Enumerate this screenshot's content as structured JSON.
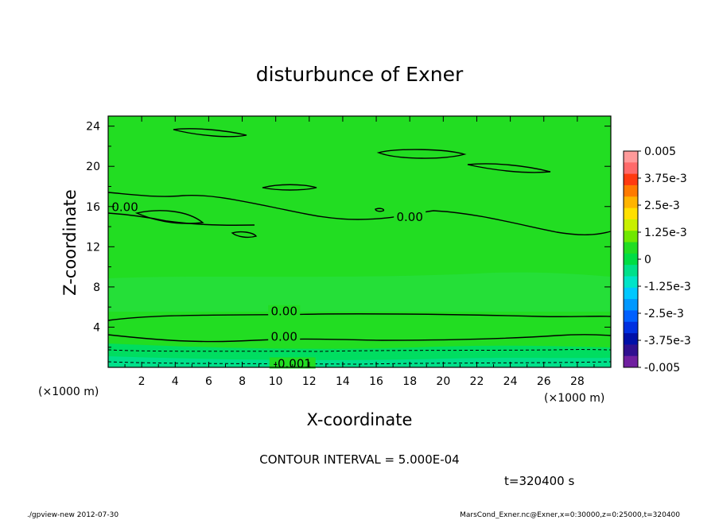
{
  "chart_data": {
    "type": "contour",
    "title": "disturbunce of Exner",
    "xlabel": "X-coordinate",
    "ylabel": "Z-coordinate",
    "x_unit": "(×1000 m)",
    "y_unit": "(×1000 m)",
    "xlim": [
      0,
      30
    ],
    "ylim": [
      0,
      25
    ],
    "x_ticks": [
      2,
      4,
      6,
      8,
      10,
      12,
      14,
      16,
      18,
      20,
      22,
      24,
      26,
      28
    ],
    "y_ticks": [
      4,
      8,
      12,
      16,
      20,
      24
    ],
    "contour_interval_text": "CONTOUR INTERVAL = 5.000E-04",
    "time_text": "t=320400 s",
    "contour_labels": [
      {
        "text": "0.00",
        "x": 1.0,
        "y": 15.8
      },
      {
        "text": "0.00",
        "x": 18.0,
        "y": 14.8
      },
      {
        "text": "0.00",
        "x": 10.5,
        "y": 5.4
      },
      {
        "text": "0.00",
        "x": 10.5,
        "y": 2.9
      },
      {
        "text": "-0.001",
        "x": 11.0,
        "y": 0.2
      }
    ],
    "colorbar": {
      "labels": [
        "0.005",
        "3.75e-3",
        "2.5e-3",
        "1.25e-3",
        "0",
        "-1.25e-3",
        "-2.5e-3",
        "-3.75e-3",
        "-0.005"
      ],
      "colors": [
        "#ff9a9a",
        "#ff6a6a",
        "#ff3a10",
        "#ff7a00",
        "#ffb400",
        "#ffe000",
        "#c8f000",
        "#70e800",
        "#22dd22",
        "#00dd44",
        "#00e08a",
        "#00e4c8",
        "#00c8ff",
        "#0098ff",
        "#0060ff",
        "#0030e0",
        "#0010a8",
        "#301090",
        "#7020a0"
      ]
    }
  },
  "footer": {
    "left": "./gpview-new   2012-07-30",
    "right": "MarsCond_Exner.nc@Exner,x=0:30000,z=0:25000,t=320400"
  }
}
